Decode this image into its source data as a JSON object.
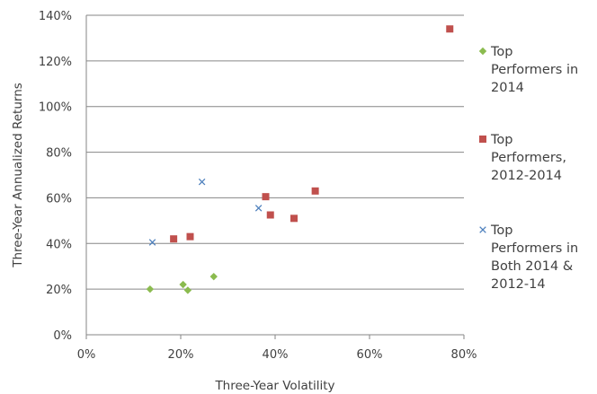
{
  "chart_data": {
    "type": "scatter",
    "title": "",
    "xlabel": "Three-Year Volatility",
    "ylabel": "Three-Year Annualized Returns",
    "xlim": [
      0,
      80
    ],
    "ylim": [
      0,
      140
    ],
    "x_ticks": [
      "0%",
      "20%",
      "40%",
      "60%",
      "80%"
    ],
    "y_ticks": [
      "0%",
      "20%",
      "40%",
      "60%",
      "80%",
      "100%",
      "120%",
      "140%"
    ],
    "grid": "horizontal",
    "legend_position": "right",
    "series": [
      {
        "name": "Top Performers in 2014",
        "name_lines": [
          "Top",
          "Performers in",
          "2014"
        ],
        "marker": "diamond",
        "color": "#8BBB4F",
        "points": [
          [
            13.5,
            20
          ],
          [
            20.5,
            22
          ],
          [
            21.5,
            19.5
          ],
          [
            27,
            25.5
          ]
        ]
      },
      {
        "name": "Top Performers, 2012-2014",
        "name_lines": [
          "Top",
          "Performers,",
          "2012-2014"
        ],
        "marker": "square",
        "color": "#C0504D",
        "points": [
          [
            77,
            134
          ],
          [
            18.5,
            42
          ],
          [
            22,
            43
          ],
          [
            38,
            60.5
          ],
          [
            39,
            52.5
          ],
          [
            44,
            51
          ],
          [
            48.5,
            63
          ]
        ]
      },
      {
        "name": "Top Performers in Both 2014 & 2012-14",
        "name_lines": [
          "Top",
          "Performers in",
          "Both 2014 &",
          "2012-14"
        ],
        "marker": "x",
        "color": "#4F81BD",
        "points": [
          [
            14,
            40.5
          ],
          [
            24.5,
            67
          ],
          [
            36.5,
            55.5
          ]
        ]
      }
    ]
  }
}
